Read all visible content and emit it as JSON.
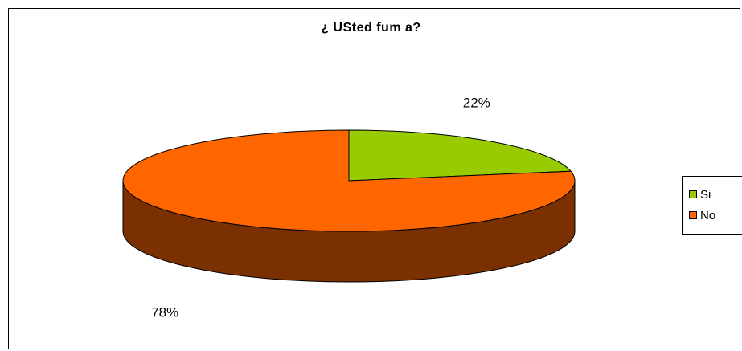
{
  "chart_data": {
    "type": "pie",
    "title": "¿ USted fum a?",
    "categories": [
      "Si",
      "No"
    ],
    "values": [
      22,
      78
    ],
    "labels": [
      "22%",
      "78%"
    ],
    "colors": [
      "#99CC00",
      "#FF6600"
    ],
    "side_colors": [
      "#4D6600",
      "#7A3000"
    ],
    "legend_position": "right",
    "style": "3d"
  }
}
